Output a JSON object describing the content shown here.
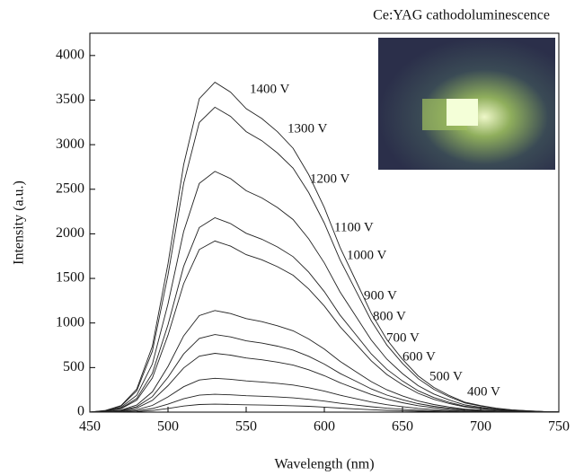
{
  "chart_data": {
    "type": "line",
    "title": "Ce:YAG cathodoluminescence",
    "x_label": "Wavelength (nm)",
    "y_label": "Intensity (a.u.)",
    "x": [
      450,
      460,
      470,
      480,
      490,
      500,
      510,
      520,
      530,
      540,
      550,
      560,
      570,
      580,
      590,
      600,
      610,
      620,
      630,
      640,
      650,
      660,
      670,
      680,
      690,
      700,
      710,
      720,
      730,
      740,
      750
    ],
    "xlim": [
      450,
      750
    ],
    "xticks": [
      450,
      500,
      550,
      600,
      650,
      700,
      750
    ],
    "ylim": [
      0,
      4250
    ],
    "yticks": [
      0,
      500,
      1000,
      1500,
      2000,
      2500,
      3000,
      3500,
      4000
    ],
    "series": [
      {
        "name": "1400 V",
        "color": "#222222",
        "values": [
          0,
          19,
          74,
          259,
          740,
          1665,
          2775,
          3515,
          3700,
          3589,
          3404,
          3293,
          3145,
          2960,
          2664,
          2294,
          1850,
          1480,
          1110,
          814,
          592,
          407,
          278,
          185,
          111,
          74,
          44,
          26,
          15,
          7,
          4
        ]
      },
      {
        "name": "1300 V",
        "color": "#222222",
        "values": [
          0,
          17,
          68,
          239,
          684,
          1539,
          2565,
          3249,
          3420,
          3317,
          3146,
          3044,
          2907,
          2736,
          2462,
          2120,
          1710,
          1368,
          1026,
          752,
          547,
          376,
          257,
          171,
          103,
          68,
          41,
          24,
          14,
          7,
          3
        ]
      },
      {
        "name": "1200 V",
        "color": "#222222",
        "values": [
          0,
          14,
          54,
          189,
          540,
          1215,
          2025,
          2565,
          2700,
          2619,
          2484,
          2403,
          2295,
          2160,
          1944,
          1674,
          1350,
          1080,
          810,
          594,
          432,
          297,
          203,
          135,
          81,
          54,
          32,
          19,
          11,
          5,
          3
        ]
      },
      {
        "name": "1100 V",
        "color": "#222222",
        "values": [
          0,
          11,
          44,
          153,
          436,
          981,
          1635,
          2071,
          2180,
          2115,
          2006,
          1940,
          1853,
          1744,
          1570,
          1352,
          1090,
          872,
          654,
          480,
          349,
          240,
          164,
          109,
          65,
          44,
          26,
          15,
          9,
          4,
          2
        ]
      },
      {
        "name": "1000 V",
        "color": "#222222",
        "values": [
          0,
          10,
          38,
          134,
          384,
          864,
          1440,
          1824,
          1920,
          1862,
          1766,
          1709,
          1632,
          1536,
          1382,
          1190,
          960,
          768,
          576,
          422,
          307,
          211,
          144,
          96,
          58,
          38,
          23,
          13,
          8,
          4,
          2
        ]
      },
      {
        "name": "900 V",
        "color": "#222222",
        "values": [
          0,
          6,
          23,
          80,
          228,
          513,
          855,
          1083,
          1140,
          1106,
          1049,
          1015,
          969,
          912,
          821,
          707,
          570,
          456,
          342,
          251,
          182,
          125,
          86,
          57,
          34,
          23,
          14,
          8,
          5,
          2,
          1
        ]
      },
      {
        "name": "800 V",
        "color": "#222222",
        "values": [
          0,
          4,
          17,
          61,
          174,
          392,
          653,
          827,
          870,
          844,
          800,
          774,
          740,
          696,
          626,
          539,
          435,
          348,
          261,
          191,
          139,
          96,
          65,
          44,
          26,
          17,
          10,
          6,
          3,
          2,
          1
        ]
      },
      {
        "name": "700 V",
        "color": "#222222",
        "values": [
          0,
          3,
          13,
          46,
          132,
          297,
          495,
          627,
          660,
          640,
          607,
          587,
          561,
          528,
          475,
          409,
          330,
          264,
          198,
          145,
          106,
          73,
          50,
          33,
          20,
          13,
          8,
          5,
          3,
          1,
          1
        ]
      },
      {
        "name": "600 V",
        "color": "#222222",
        "values": [
          0,
          2,
          8,
          27,
          76,
          171,
          285,
          361,
          380,
          369,
          350,
          338,
          323,
          304,
          274,
          236,
          190,
          152,
          114,
          84,
          61,
          42,
          29,
          19,
          11,
          8,
          5,
          3,
          2,
          1,
          0
        ]
      },
      {
        "name": "500 V",
        "color": "#222222",
        "values": [
          0,
          1,
          4,
          14,
          40,
          90,
          150,
          190,
          200,
          194,
          184,
          178,
          170,
          160,
          144,
          124,
          100,
          80,
          60,
          44,
          32,
          22,
          15,
          10,
          6,
          4,
          2,
          1,
          1,
          0,
          0
        ]
      },
      {
        "name": "400 V",
        "color": "#222222",
        "values": [
          0,
          0,
          2,
          6,
          18,
          41,
          68,
          86,
          90,
          87,
          83,
          80,
          77,
          72,
          65,
          56,
          45,
          36,
          27,
          20,
          14,
          10,
          7,
          5,
          3,
          2,
          1,
          1,
          0,
          0,
          0
        ]
      }
    ]
  }
}
